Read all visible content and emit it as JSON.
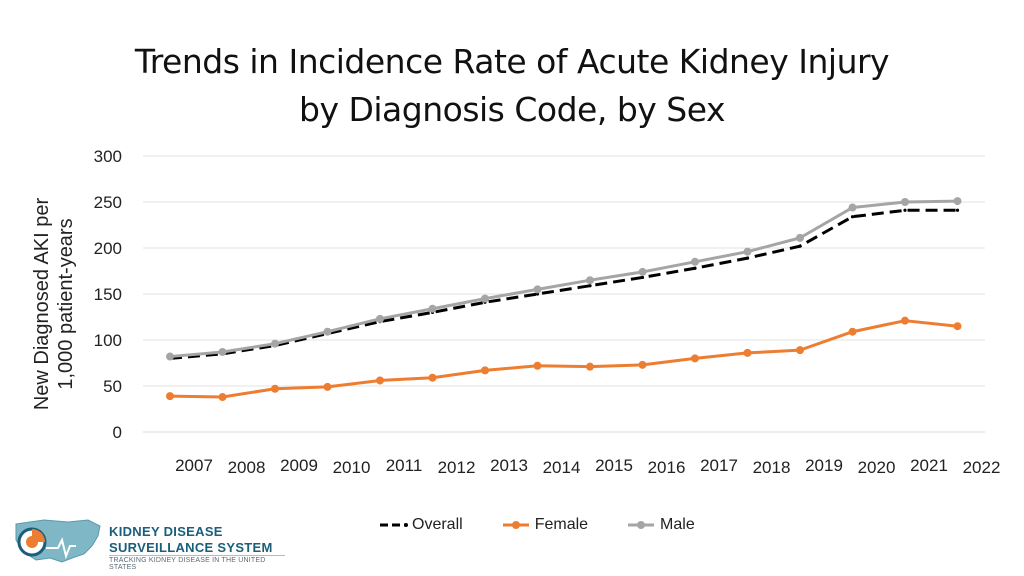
{
  "chart_data": {
    "type": "line",
    "title_line1": "Trends in Incidence Rate of Acute Kidney Injury",
    "title_line2": "by Diagnosis Code, by Sex",
    "ylabel": "New Diagnosed AKI per\n1,000 patient-years",
    "ylim": [
      0,
      300
    ],
    "yticks": [
      0,
      50,
      100,
      150,
      200,
      250,
      300
    ],
    "grid": true,
    "legend_position": "bottom",
    "x": [
      "2007",
      "2008",
      "2009",
      "2010",
      "2011",
      "2012",
      "2013",
      "2014",
      "2015",
      "2016",
      "2017",
      "2018",
      "2019",
      "2020",
      "2021",
      "2022"
    ],
    "series": [
      {
        "name": "Overall",
        "color": "#000000",
        "style": "dashed",
        "values": [
          80,
          85,
          94,
          107,
          120,
          130,
          141,
          150,
          159,
          168,
          178,
          189,
          202,
          234,
          241,
          241
        ]
      },
      {
        "name": "Female",
        "color": "#ED7D31",
        "style": "solid",
        "values": [
          39,
          38,
          47,
          49,
          56,
          59,
          67,
          72,
          71,
          73,
          80,
          86,
          89,
          109,
          121,
          115
        ]
      },
      {
        "name": "Male",
        "color": "#A5A5A5",
        "style": "solid",
        "values": [
          82,
          87,
          96,
          109,
          123,
          134,
          145,
          155,
          165,
          174,
          185,
          196,
          211,
          244,
          250,
          251
        ]
      }
    ]
  },
  "legend": {
    "overall_label": "Overall",
    "female_label": "Female",
    "male_label": "Male"
  },
  "logo": {
    "line1": "KIDNEY DISEASE",
    "line2": "SURVEILLANCE SYSTEM",
    "line3": "TRACKING KIDNEY DISEASE IN THE UNITED STATES"
  }
}
